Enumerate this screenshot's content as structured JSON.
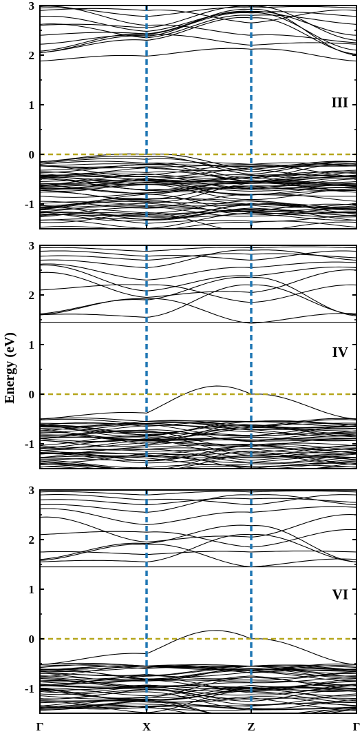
{
  "chart_data": {
    "type": "line",
    "ylabel": "Energy (eV)",
    "x_ticks": [
      "Γ",
      "X",
      "Z",
      "Γ"
    ],
    "y_ticks": [
      "3",
      "2",
      "1",
      "0",
      "-1"
    ],
    "ylim": [
      -1.5,
      3.0
    ],
    "fermi_level": 0,
    "high_symmetry_points": [
      1,
      2
    ],
    "colors": {
      "bands": "#000000",
      "fermi_line": "#b5a61b",
      "symmetry_lines": "#1f77b4"
    },
    "panels": [
      {
        "label": "III",
        "conduction_bands": [
          {
            "y": [
              1.88,
              1.98,
              2.12,
              1.88
            ],
            "amp": [
              0.04,
              0.05,
              0.04
            ]
          },
          {
            "y": [
              2.05,
              2.3,
              2.75,
              2.02
            ],
            "amp": [
              0.05,
              0.06,
              0.05
            ]
          },
          {
            "y": [
              2.08,
              2.42,
              2.85,
              2.1
            ],
            "amp": [
              0.05,
              0.05,
              0.05
            ]
          },
          {
            "y": [
              2.22,
              2.4,
              2.2,
              2.22
            ],
            "amp": [
              0.03,
              0.05,
              0.04
            ]
          },
          {
            "y": [
              2.4,
              2.43,
              2.88,
              2.4
            ],
            "amp": [
              0.04,
              0.05,
              0.03
            ]
          },
          {
            "y": [
              2.62,
              2.35,
              2.8,
              2.62
            ],
            "amp": [
              0.05,
              0.05,
              0.04
            ]
          },
          {
            "y": [
              2.78,
              2.48,
              2.86,
              2.78
            ],
            "amp": [
              0.04,
              0.05,
              0.04
            ]
          },
          {
            "y": [
              2.9,
              2.9,
              2.65,
              2.9
            ],
            "amp": [
              0.04,
              0.05,
              0.05
            ]
          },
          {
            "y": [
              2.95,
              2.78,
              2.95,
              2.95
            ],
            "amp": [
              0.03,
              0.04,
              0.03
            ]
          },
          {
            "y": [
              2.98,
              2.6,
              2.4,
              2.25
            ],
            "amp": [
              0.05,
              0.04,
              0.04
            ]
          },
          {
            "y": [
              2.6,
              2.55,
              2.98,
              2.3
            ],
            "amp": [
              0.04,
              0.05,
              0.05
            ]
          },
          {
            "y": [
              2.05,
              2.38,
              2.92,
              2.0
            ],
            "amp": [
              0.05,
              0.05,
              0.06
            ]
          }
        ],
        "valence_top": [
          {
            "y": [
              -0.15,
              0.0,
              -0.3,
              -0.15
            ],
            "amp": [
              0.04,
              0.05,
              0.04
            ]
          },
          {
            "y": [
              -0.15,
              -0.05,
              -0.4,
              -0.15
            ],
            "amp": [
              0.04,
              0.05,
              0.04
            ]
          },
          {
            "y": [
              -0.17,
              -0.1,
              -0.35,
              -0.18
            ],
            "amp": [
              0.04,
              0.06,
              0.04
            ]
          },
          {
            "y": [
              -0.2,
              -0.18,
              -0.5,
              -0.2
            ],
            "amp": [
              0.05,
              0.05,
              0.05
            ]
          }
        ],
        "valence_dense_range": [
          -1.48,
          -0.2
        ],
        "valence_dense_count": 55
      },
      {
        "label": "IV",
        "conduction_bands": [
          {
            "y": [
              1.6,
              1.55,
              2.2,
              1.6
            ],
            "amp": [
              0.03,
              0.05,
              0.04
            ]
          },
          {
            "y": [
              1.62,
              1.9,
              2.35,
              1.58
            ],
            "amp": [
              0.05,
              0.06,
              0.05
            ]
          },
          {
            "y": [
              1.6,
              1.92,
              1.43,
              1.62
            ],
            "amp": [
              0.04,
              0.05,
              0.04
            ]
          },
          {
            "y": [
              1.45,
              1.45,
              1.45,
              1.45
            ],
            "amp": [
              0.0,
              0.0,
              0.0
            ]
          },
          {
            "y": [
              2.1,
              2.2,
              1.85,
              2.2
            ],
            "amp": [
              0.03,
              0.04,
              0.03
            ]
          },
          {
            "y": [
              2.45,
              1.95,
              2.05,
              2.5
            ],
            "amp": [
              0.05,
              0.05,
              0.05
            ]
          },
          {
            "y": [
              2.62,
              2.3,
              2.55,
              2.65
            ],
            "amp": [
              0.04,
              0.04,
              0.04
            ]
          },
          {
            "y": [
              2.7,
              2.55,
              2.9,
              2.7
            ],
            "amp": [
              0.03,
              0.04,
              0.04
            ]
          },
          {
            "y": [
              2.78,
              2.7,
              2.82,
              2.75
            ],
            "amp": [
              0.03,
              0.04,
              0.03
            ]
          },
          {
            "y": [
              2.88,
              2.78,
              2.7,
              2.88
            ],
            "amp": [
              0.03,
              0.04,
              0.04
            ]
          },
          {
            "y": [
              2.95,
              2.88,
              2.95,
              2.95
            ],
            "amp": [
              0.02,
              0.03,
              0.02
            ]
          },
          {
            "y": [
              2.6,
              2.08,
              2.38,
              2.55
            ],
            "amp": [
              0.04,
              0.05,
              0.05
            ]
          }
        ],
        "valence_top": [
          {
            "y": [
              -0.5,
              -0.38,
              0.0,
              -0.5
            ],
            "amp": [
              0.04,
              0.3,
              0.04
            ]
          },
          {
            "y": [
              -0.5,
              -0.55,
              -0.65,
              -0.5
            ],
            "amp": [
              0.04,
              0.05,
              0.04
            ]
          },
          {
            "y": [
              -0.52,
              -0.6,
              -0.68,
              -0.52
            ],
            "amp": [
              0.04,
              0.05,
              0.04
            ]
          }
        ],
        "valence_dense_range": [
          -1.48,
          -0.55
        ],
        "valence_dense_count": 48
      },
      {
        "label": "VI",
        "conduction_bands": [
          {
            "y": [
              1.55,
              1.55,
              2.1,
              1.55
            ],
            "amp": [
              0.03,
              0.05,
              0.04
            ]
          },
          {
            "y": [
              1.6,
              1.92,
              2.28,
              1.55
            ],
            "amp": [
              0.05,
              0.06,
              0.05
            ]
          },
          {
            "y": [
              1.58,
              1.9,
              1.45,
              1.6
            ],
            "amp": [
              0.04,
              0.05,
              0.04
            ]
          },
          {
            "y": [
              1.45,
              1.45,
              1.45,
              1.45
            ],
            "amp": [
              0.0,
              0.0,
              0.0
            ]
          },
          {
            "y": [
              1.75,
              1.7,
              1.75,
              1.75
            ],
            "amp": [
              0.02,
              0.03,
              0.02
            ]
          },
          {
            "y": [
              2.1,
              2.15,
              1.85,
              2.2
            ],
            "amp": [
              0.03,
              0.04,
              0.03
            ]
          },
          {
            "y": [
              2.45,
              1.95,
              2.05,
              2.5
            ],
            "amp": [
              0.05,
              0.05,
              0.05
            ]
          },
          {
            "y": [
              2.62,
              2.3,
              2.55,
              2.65
            ],
            "amp": [
              0.04,
              0.04,
              0.04
            ]
          },
          {
            "y": [
              2.7,
              2.55,
              2.9,
              2.7
            ],
            "amp": [
              0.03,
              0.04,
              0.04
            ]
          },
          {
            "y": [
              2.8,
              2.7,
              2.82,
              2.75
            ],
            "amp": [
              0.03,
              0.04,
              0.03
            ]
          },
          {
            "y": [
              2.9,
              2.8,
              2.7,
              2.9
            ],
            "amp": [
              0.03,
              0.04,
              0.04
            ]
          },
          {
            "y": [
              2.96,
              2.9,
              2.96,
              2.96
            ],
            "amp": [
              0.02,
              0.03,
              0.02
            ]
          }
        ],
        "valence_top": [
          {
            "y": [
              -0.52,
              -0.3,
              0.0,
              -0.52
            ],
            "amp": [
              0.04,
              0.28,
              0.04
            ]
          },
          {
            "y": [
              -0.52,
              -0.55,
              -0.65,
              -0.52
            ],
            "amp": [
              0.04,
              0.05,
              0.04
            ]
          },
          {
            "y": [
              -0.55,
              -0.6,
              -0.68,
              -0.55
            ],
            "amp": [
              0.04,
              0.05,
              0.04
            ]
          }
        ],
        "valence_dense_range": [
          -1.48,
          -0.55
        ],
        "valence_dense_count": 48
      }
    ]
  }
}
